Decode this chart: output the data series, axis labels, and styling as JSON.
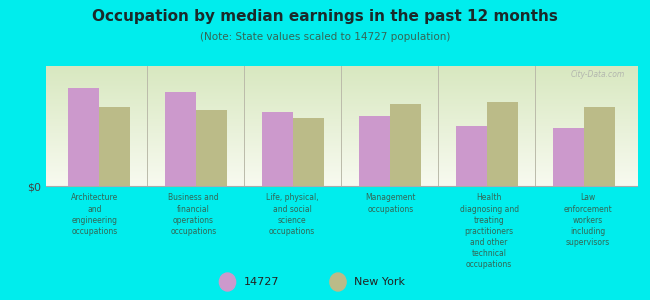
{
  "title": "Occupation by median earnings in the past 12 months",
  "subtitle": "(Note: State values scaled to 14727 population)",
  "background_color": "#00eded",
  "plot_bg_top": "#f8faf0",
  "plot_bg_bottom": "#d8e8c0",
  "bar_color_14727": "#cc99cc",
  "bar_color_ny": "#bbbb88",
  "categories": [
    "Architecture\nand\nengineering\noccupations",
    "Business and\nfinancial\noperations\noccupations",
    "Life, physical,\nand social\nscience\noccupations",
    "Management\noccupations",
    "Health\ndiagnosing and\ntreating\npractitioners\nand other\ntechnical\noccupations",
    "Law\nenforcement\nworkers\nincluding\nsupervisors"
  ],
  "values_14727": [
    0.82,
    0.78,
    0.62,
    0.58,
    0.5,
    0.48
  ],
  "values_ny": [
    0.66,
    0.63,
    0.57,
    0.68,
    0.7,
    0.66
  ],
  "ylabel": "$0",
  "legend_label_1": "14727",
  "legend_label_2": "New York",
  "title_color": "#1a2a2a",
  "subtitle_color": "#336655",
  "xlabel_color": "#336655",
  "watermark": "City-Data.com",
  "divider_color": "#bbbbaa"
}
